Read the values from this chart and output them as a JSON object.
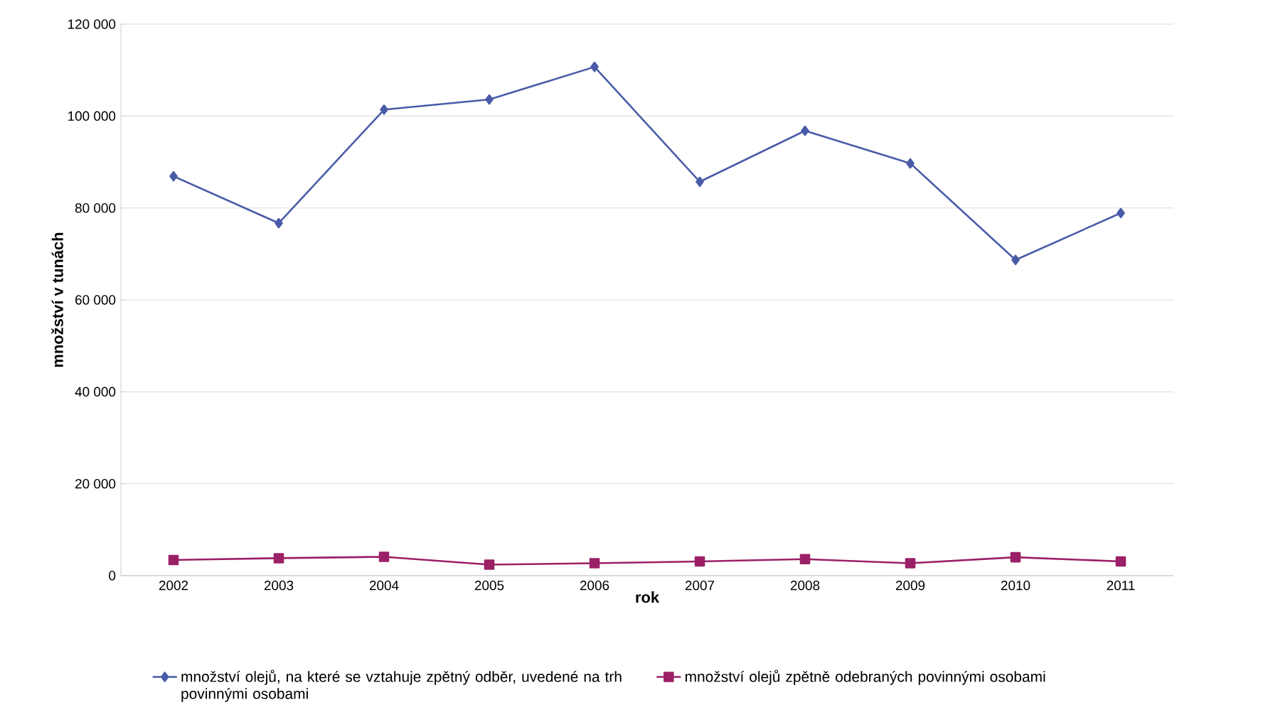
{
  "chart_data": {
    "type": "line",
    "xlabel": "rok",
    "ylabel": "množství v tunách",
    "categories": [
      "2002",
      "2003",
      "2004",
      "2005",
      "2006",
      "2007",
      "2008",
      "2009",
      "2010",
      "2011"
    ],
    "series": [
      {
        "name": "množství olejů, na které se vztahuje zpětný odběr, uvedené na trh povinnými osobami",
        "color": "#4a5ba8",
        "marker": "diamond",
        "values": [
          86900,
          76700,
          101400,
          103600,
          110700,
          85700,
          96800,
          89700,
          68700,
          78900
        ]
      },
      {
        "name": "množství olejů zpětně odebraných povinnými osobami",
        "color": "#9b2066",
        "marker": "square",
        "values": [
          3400,
          3800,
          4100,
          2400,
          2700,
          3100,
          3600,
          2700,
          4000,
          3100
        ]
      }
    ],
    "ylim": [
      0,
      120000
    ],
    "yticks": [
      {
        "value": 0,
        "label": "0"
      },
      {
        "value": 20000,
        "label": "20 000"
      },
      {
        "value": 40000,
        "label": "40 000"
      },
      {
        "value": 60000,
        "label": "60 000"
      },
      {
        "value": 80000,
        "label": "80 000"
      },
      {
        "value": 100000,
        "label": "100 000"
      },
      {
        "value": 120000,
        "label": "120 000"
      }
    ],
    "grid": "y",
    "legend": "bottom"
  }
}
